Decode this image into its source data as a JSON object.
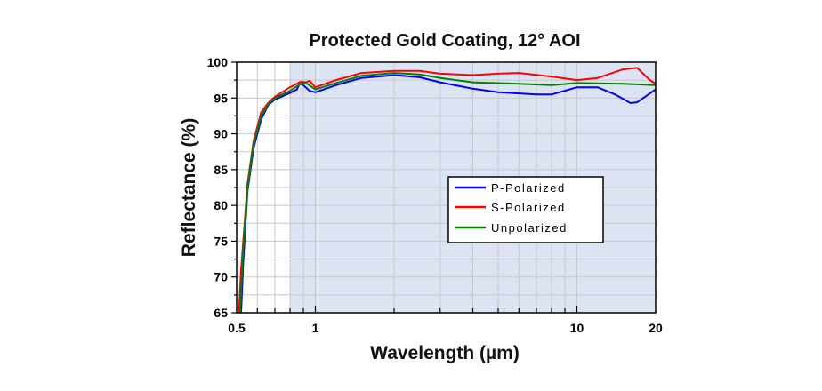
{
  "chart_data": {
    "type": "line",
    "title": "Protected Gold Coating, 12° AOI",
    "xlabel": "Wavelength (µm)",
    "ylabel": "Reflectance (%)",
    "xscale": "log",
    "xlim": [
      0.5,
      20
    ],
    "ylim": [
      65,
      100
    ],
    "xticks": [
      0.5,
      1,
      10,
      20
    ],
    "xtick_labels": [
      "0.5",
      "1",
      "10",
      "20"
    ],
    "yticks": [
      65,
      70,
      75,
      80,
      85,
      90,
      95,
      100
    ],
    "ytick_labels": [
      "65",
      "70",
      "75",
      "80",
      "85",
      "90",
      "95",
      "100"
    ],
    "grid": true,
    "shaded_region": {
      "x_from": 0.8,
      "x_to": 20,
      "color": "#dce4f4"
    },
    "legend_position": "center-right",
    "series": [
      {
        "name": "P-Polarized",
        "color": "#0000ff",
        "x": [
          0.52,
          0.53,
          0.55,
          0.58,
          0.62,
          0.66,
          0.7,
          0.8,
          0.85,
          0.87,
          0.9,
          0.95,
          1.0,
          1.2,
          1.5,
          2,
          2.5,
          3,
          4,
          5,
          7,
          8,
          10,
          12,
          14,
          16,
          17,
          20
        ],
        "y": [
          65,
          72,
          82,
          88,
          92,
          94,
          94.8,
          95.7,
          96.2,
          97,
          96.8,
          96.0,
          95.8,
          96.8,
          97.8,
          98.2,
          97.9,
          97.2,
          96.3,
          95.8,
          95.5,
          95.5,
          96.5,
          96.5,
          95.5,
          94.3,
          94.4,
          96.2
        ]
      },
      {
        "name": "S-Polarized",
        "color": "#ff0000",
        "x": [
          0.51,
          0.52,
          0.55,
          0.58,
          0.62,
          0.66,
          0.7,
          0.8,
          0.88,
          0.92,
          0.95,
          1.0,
          1.2,
          1.5,
          2,
          2.5,
          3,
          4,
          5,
          6,
          8,
          10,
          12,
          15,
          17,
          19,
          20
        ],
        "y": [
          65,
          71,
          83,
          89,
          93,
          94.3,
          95.2,
          96.5,
          97.3,
          97.2,
          97.4,
          96.5,
          97.5,
          98.5,
          98.8,
          98.8,
          98.4,
          98.2,
          98.4,
          98.5,
          98,
          97.5,
          97.8,
          99,
          99.2,
          97.5,
          97
        ]
      },
      {
        "name": "Unpolarized",
        "color": "#008000",
        "x": [
          0.515,
          0.53,
          0.55,
          0.58,
          0.62,
          0.66,
          0.7,
          0.8,
          0.88,
          0.92,
          1.0,
          1.2,
          1.5,
          2,
          2.5,
          3,
          4,
          6,
          8,
          10,
          15,
          20
        ],
        "y": [
          65,
          74,
          82.5,
          88.5,
          92.5,
          94.1,
          95,
          96,
          97,
          97.1,
          96.2,
          97.1,
          98.1,
          98.5,
          98.3,
          97.8,
          97.2,
          97,
          96.8,
          97.1,
          97,
          96.8
        ]
      }
    ]
  }
}
